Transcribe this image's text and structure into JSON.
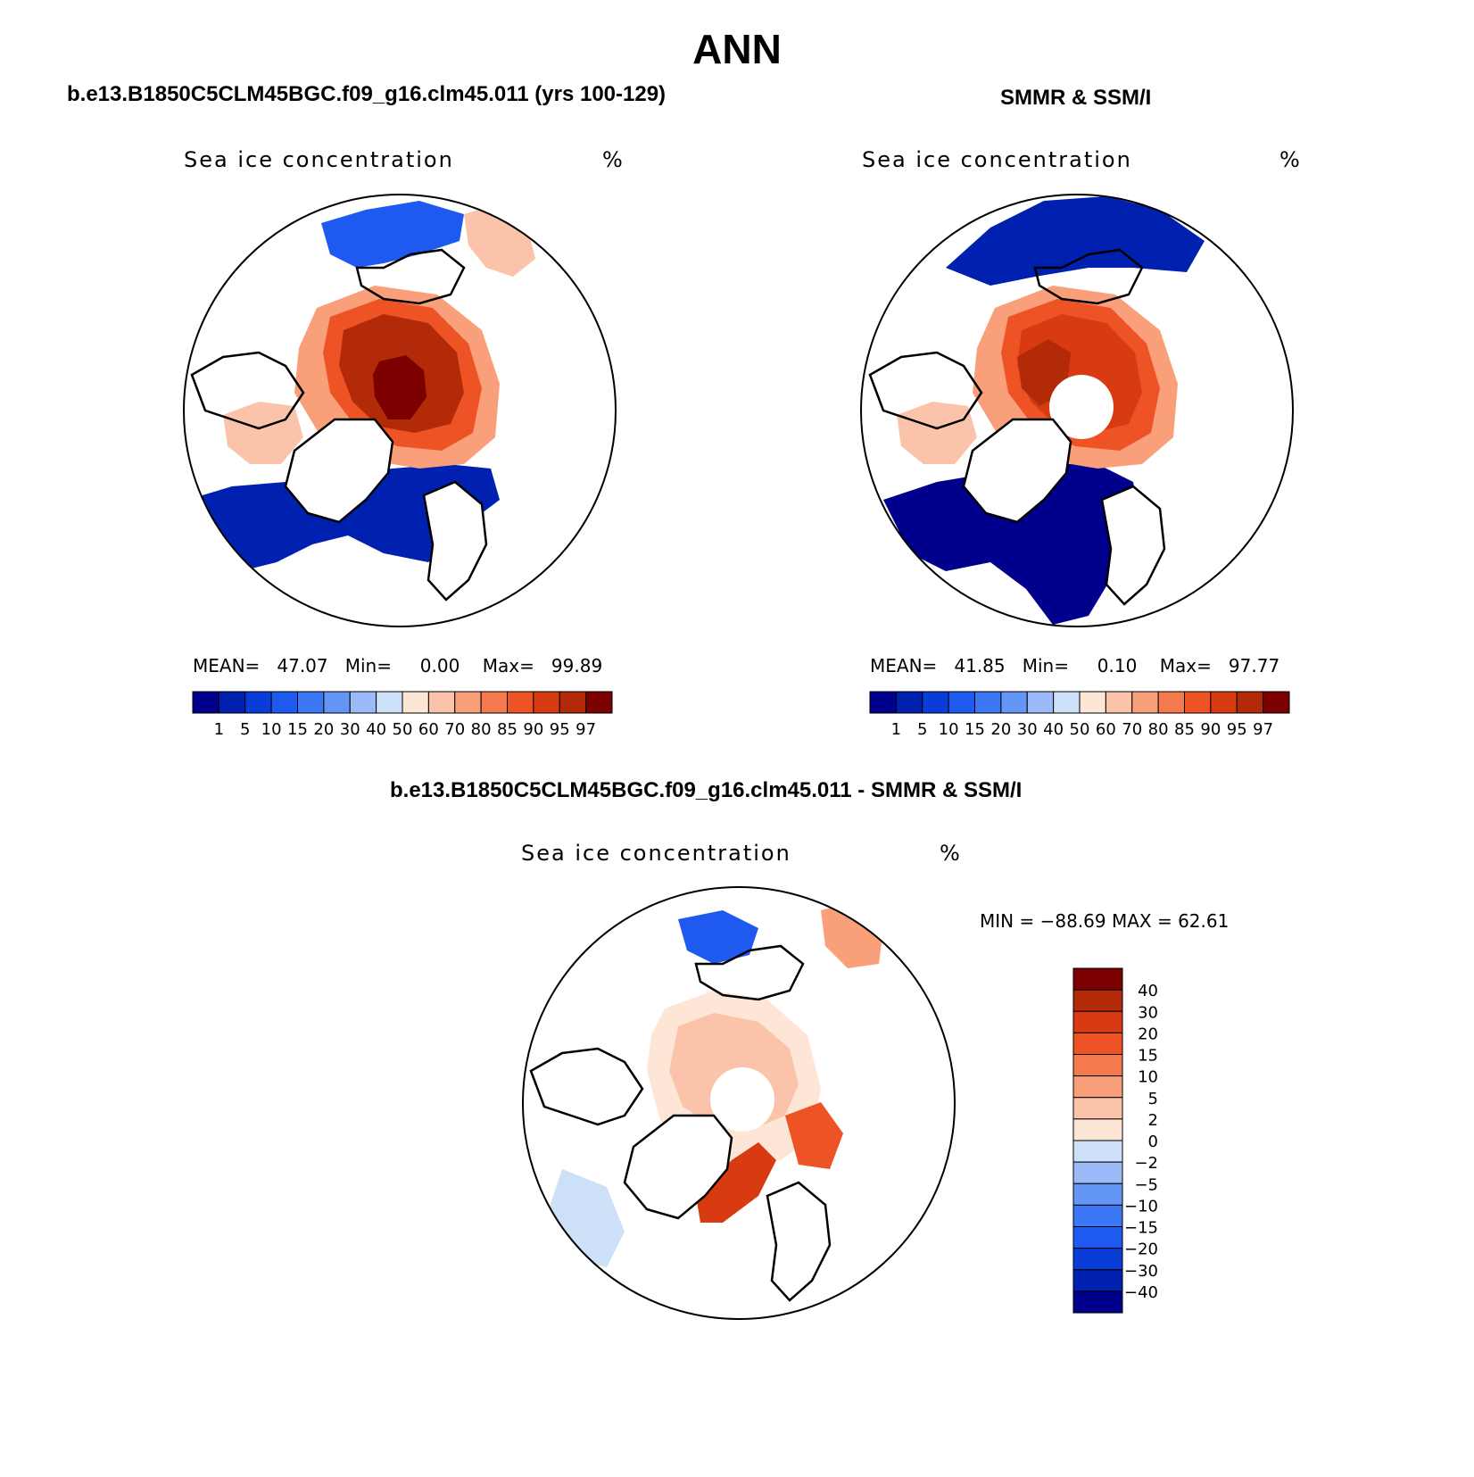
{
  "figure": {
    "title": "ANN",
    "panel1_title": "b.e13.B1850C5CLM45BGC.f09_g16.clm45.011 (yrs 100-129)",
    "panel2_title": "SMMR & SSM/I",
    "panel3_title": "b.e13.B1850C5CLM45BGC.f09_g16.clm45.011 - SMMR & SSM/I"
  },
  "panels": [
    {
      "variable": "Sea ice concentration",
      "units": "%",
      "mean_label": "MEAN=",
      "mean_value": "47.07",
      "min_label": "Min=",
      "min_value": "0.00",
      "max_label": "Max=",
      "max_value": "99.89"
    },
    {
      "variable": "Sea ice concentration",
      "units": "%",
      "mean_label": "MEAN=",
      "mean_value": "41.85",
      "min_label": "Min=",
      "min_value": "0.10",
      "max_label": "Max=",
      "max_value": "97.77"
    },
    {
      "variable": "Sea ice concentration",
      "units": "%",
      "minmax_text": "MIN = −88.69 MAX =   62.61"
    }
  ],
  "colorbar_abs": {
    "labels": [
      "1",
      "5",
      "10",
      "15",
      "20",
      "30",
      "40",
      "50",
      "60",
      "70",
      "80",
      "85",
      "90",
      "95",
      "97"
    ],
    "colors": [
      "#00008c",
      "#0020b0",
      "#0a3cd8",
      "#1e5af0",
      "#3c78f5",
      "#6496f5",
      "#9bbaf7",
      "#cce0f8",
      "#fde6d6",
      "#fbc4aa",
      "#f9a07a",
      "#f47a4e",
      "#ee5326",
      "#d83a12",
      "#b22a08",
      "#7d0000"
    ]
  },
  "colorbar_diff": {
    "labels": [
      "40",
      "30",
      "20",
      "15",
      "10",
      "5",
      "2",
      "0",
      "−2",
      "−5",
      "−10",
      "−15",
      "−20",
      "−30",
      "−40"
    ],
    "colors": [
      "#7d0000",
      "#b22a08",
      "#d83a12",
      "#ee5326",
      "#f47a4e",
      "#f9a07a",
      "#fbc4aa",
      "#fde6d6",
      "#cce0f8",
      "#9bbaf7",
      "#6496f5",
      "#3c78f5",
      "#1e5af0",
      "#0a3cd8",
      "#0020b0",
      "#00008c"
    ]
  },
  "map_regions": {
    "panel1": [
      {
        "name": "central-arctic",
        "color": "#b22a08"
      },
      {
        "name": "north-pole-core",
        "color": "#7d0000"
      },
      {
        "name": "pack-ice-margin",
        "color": "#ee5326"
      },
      {
        "name": "marginal-ice",
        "color": "#f9a07a"
      },
      {
        "name": "baffin-labrador",
        "color": "#fbc4aa"
      },
      {
        "name": "gin-seas-open-water",
        "color": "#0020b0"
      },
      {
        "name": "bering-sea",
        "color": "#1e5af0"
      },
      {
        "name": "okhotsk-sea",
        "color": "#6496f5"
      }
    ],
    "panel2": [
      {
        "name": "central-arctic",
        "color": "#d83a12"
      },
      {
        "name": "canada-basin",
        "color": "#b22a08"
      },
      {
        "name": "pack-ice-margin",
        "color": "#ee5326"
      },
      {
        "name": "marginal-ice",
        "color": "#f9a07a"
      },
      {
        "name": "baffin-bay",
        "color": "#fbc4aa"
      },
      {
        "name": "atlantic-open-water",
        "color": "#00008c"
      },
      {
        "name": "bering-okhotsk",
        "color": "#0020b0"
      },
      {
        "name": "pole-hole",
        "color": "#ffffff"
      }
    ],
    "panel3": [
      {
        "name": "central-arctic-diff",
        "color": "#fde6d6"
      },
      {
        "name": "inner-band",
        "color": "#fbc4aa"
      },
      {
        "name": "fram-strait-positive",
        "color": "#d83a12"
      },
      {
        "name": "barents-positive",
        "color": "#ee5326"
      },
      {
        "name": "labrador-negative",
        "color": "#cce0f8"
      },
      {
        "name": "bering-negative",
        "color": "#1e5af0"
      },
      {
        "name": "okhotsk-mixed",
        "color": "#f9a07a"
      },
      {
        "name": "pole-hole",
        "color": "#ffffff"
      }
    ]
  }
}
